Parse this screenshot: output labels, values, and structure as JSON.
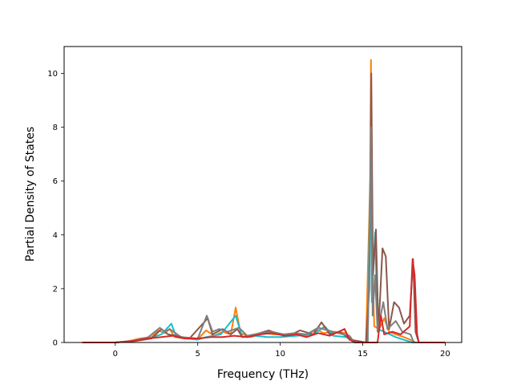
{
  "chart_data": {
    "type": "line",
    "title": "",
    "xlabel": "Frequency (THz)",
    "ylabel": "Partial Density of States",
    "xlim": [
      -3.1,
      21.0
    ],
    "ylim": [
      0,
      11.0
    ],
    "xticks": [
      0,
      5,
      10,
      15,
      20
    ],
    "yticks": [
      0,
      2,
      4,
      6,
      8,
      10
    ],
    "grid": false,
    "legend": "none",
    "series": [
      {
        "color": "#ff7f0e",
        "points": [
          [
            -2,
            0
          ],
          [
            0,
            0
          ],
          [
            0.8,
            0.05
          ],
          [
            1.5,
            0.15
          ],
          [
            2.2,
            0.2
          ],
          [
            2.6,
            0.45
          ],
          [
            3.0,
            0.35
          ],
          [
            3.3,
            0.5
          ],
          [
            3.6,
            0.2
          ],
          [
            4.2,
            0.15
          ],
          [
            5.0,
            0.12
          ],
          [
            5.5,
            0.45
          ],
          [
            6.0,
            0.25
          ],
          [
            6.5,
            0.4
          ],
          [
            7.0,
            0.3
          ],
          [
            7.3,
            1.3
          ],
          [
            7.6,
            0.35
          ],
          [
            8.2,
            0.2
          ],
          [
            9.0,
            0.35
          ],
          [
            9.6,
            0.3
          ],
          [
            10.2,
            0.3
          ],
          [
            11.0,
            0.3
          ],
          [
            11.6,
            0.25
          ],
          [
            12.2,
            0.5
          ],
          [
            12.6,
            0.35
          ],
          [
            13.3,
            0.4
          ],
          [
            14.0,
            0.35
          ],
          [
            14.5,
            0
          ],
          [
            15.2,
            0
          ],
          [
            15.45,
            6.0
          ],
          [
            15.5,
            10.5
          ],
          [
            15.58,
            3.0
          ],
          [
            15.7,
            0.6
          ],
          [
            16.0,
            0.5
          ],
          [
            16.3,
            0.9
          ],
          [
            16.6,
            0.4
          ],
          [
            17.0,
            0.3
          ],
          [
            17.5,
            0.2
          ],
          [
            17.9,
            0.1
          ],
          [
            18.2,
            0
          ],
          [
            20,
            0
          ]
        ]
      },
      {
        "color": "#17becf",
        "points": [
          [
            -2,
            0
          ],
          [
            0,
            0
          ],
          [
            1.0,
            0.05
          ],
          [
            2.0,
            0.15
          ],
          [
            2.8,
            0.3
          ],
          [
            3.4,
            0.7
          ],
          [
            3.7,
            0.2
          ],
          [
            5.0,
            0.1
          ],
          [
            5.5,
            0.2
          ],
          [
            6.4,
            0.3
          ],
          [
            7.3,
            1.0
          ],
          [
            7.7,
            0.2
          ],
          [
            8.5,
            0.25
          ],
          [
            9.2,
            0.2
          ],
          [
            10.0,
            0.2
          ],
          [
            11.0,
            0.25
          ],
          [
            12.0,
            0.3
          ],
          [
            12.7,
            0.6
          ],
          [
            13.2,
            0.25
          ],
          [
            14.0,
            0.2
          ],
          [
            14.5,
            0
          ],
          [
            15.3,
            0
          ],
          [
            15.48,
            7.0
          ],
          [
            15.55,
            1.5
          ],
          [
            15.75,
            4.1
          ],
          [
            15.9,
            0.5
          ],
          [
            16.3,
            0.4
          ],
          [
            17.0,
            0.2
          ],
          [
            18.0,
            0
          ],
          [
            20,
            0
          ]
        ]
      },
      {
        "color": "#8c564b",
        "points": [
          [
            -2,
            0
          ],
          [
            0,
            0
          ],
          [
            1.2,
            0.05
          ],
          [
            2.2,
            0.15
          ],
          [
            2.8,
            0.5
          ],
          [
            3.2,
            0.3
          ],
          [
            4.5,
            0.15
          ],
          [
            5.6,
            0.9
          ],
          [
            5.9,
            0.3
          ],
          [
            6.5,
            0.5
          ],
          [
            7.0,
            0.3
          ],
          [
            7.4,
            0.5
          ],
          [
            7.7,
            0.2
          ],
          [
            8.5,
            0.3
          ],
          [
            9.3,
            0.45
          ],
          [
            10.0,
            0.3
          ],
          [
            10.7,
            0.3
          ],
          [
            11.2,
            0.45
          ],
          [
            12.0,
            0.3
          ],
          [
            12.5,
            0.75
          ],
          [
            13.0,
            0.3
          ],
          [
            13.6,
            0.4
          ],
          [
            14.3,
            0.1
          ],
          [
            15.2,
            0
          ],
          [
            15.4,
            2.0
          ],
          [
            15.52,
            10.0
          ],
          [
            15.62,
            2.5
          ],
          [
            15.8,
            4.2
          ],
          [
            15.95,
            0.4
          ],
          [
            16.2,
            3.5
          ],
          [
            16.4,
            3.2
          ],
          [
            16.6,
            0.5
          ],
          [
            16.9,
            1.5
          ],
          [
            17.2,
            1.3
          ],
          [
            17.5,
            0.7
          ],
          [
            17.85,
            1.0
          ],
          [
            18.05,
            3.1
          ],
          [
            18.2,
            0.4
          ],
          [
            18.4,
            0
          ],
          [
            20,
            0
          ]
        ]
      },
      {
        "color": "#7f7f7f",
        "points": [
          [
            -2,
            0
          ],
          [
            0,
            0
          ],
          [
            1.0,
            0.05
          ],
          [
            2.0,
            0.2
          ],
          [
            2.7,
            0.55
          ],
          [
            3.0,
            0.4
          ],
          [
            3.3,
            0.5
          ],
          [
            4.0,
            0.2
          ],
          [
            5.0,
            0.15
          ],
          [
            5.55,
            1.0
          ],
          [
            5.9,
            0.4
          ],
          [
            6.3,
            0.5
          ],
          [
            6.8,
            0.4
          ],
          [
            7.5,
            0.55
          ],
          [
            8.0,
            0.25
          ],
          [
            8.8,
            0.35
          ],
          [
            9.5,
            0.4
          ],
          [
            10.2,
            0.3
          ],
          [
            10.9,
            0.35
          ],
          [
            11.6,
            0.3
          ],
          [
            12.3,
            0.55
          ],
          [
            12.9,
            0.45
          ],
          [
            13.5,
            0.35
          ],
          [
            14.2,
            0.25
          ],
          [
            14.5,
            0
          ],
          [
            15.3,
            0
          ],
          [
            15.42,
            4.0
          ],
          [
            15.5,
            8.0
          ],
          [
            15.6,
            1.0
          ],
          [
            15.75,
            2.5
          ],
          [
            15.9,
            0.4
          ],
          [
            16.25,
            1.5
          ],
          [
            16.5,
            0.5
          ],
          [
            17.0,
            0.8
          ],
          [
            17.4,
            0.4
          ],
          [
            17.9,
            0.3
          ],
          [
            18.1,
            0
          ],
          [
            20,
            0
          ]
        ]
      },
      {
        "color": "#d62728",
        "points": [
          [
            -2,
            0
          ],
          [
            0,
            0
          ],
          [
            1.0,
            0.05
          ],
          [
            2.0,
            0.15
          ],
          [
            2.8,
            0.2
          ],
          [
            3.5,
            0.25
          ],
          [
            4.2,
            0.15
          ],
          [
            5.0,
            0.15
          ],
          [
            5.8,
            0.2
          ],
          [
            6.5,
            0.2
          ],
          [
            7.2,
            0.25
          ],
          [
            8.0,
            0.2
          ],
          [
            8.8,
            0.3
          ],
          [
            9.5,
            0.35
          ],
          [
            10.3,
            0.25
          ],
          [
            11.0,
            0.3
          ],
          [
            11.6,
            0.2
          ],
          [
            12.3,
            0.35
          ],
          [
            13.0,
            0.25
          ],
          [
            13.9,
            0.5
          ],
          [
            14.2,
            0.1
          ],
          [
            14.6,
            0
          ],
          [
            15.9,
            0
          ],
          [
            16.1,
            1.0
          ],
          [
            16.3,
            0.3
          ],
          [
            16.8,
            0.4
          ],
          [
            17.3,
            0.3
          ],
          [
            17.85,
            0.6
          ],
          [
            18.02,
            3.1
          ],
          [
            18.15,
            2.5
          ],
          [
            18.3,
            0.3
          ],
          [
            18.4,
            0
          ],
          [
            20,
            0
          ]
        ]
      }
    ]
  }
}
